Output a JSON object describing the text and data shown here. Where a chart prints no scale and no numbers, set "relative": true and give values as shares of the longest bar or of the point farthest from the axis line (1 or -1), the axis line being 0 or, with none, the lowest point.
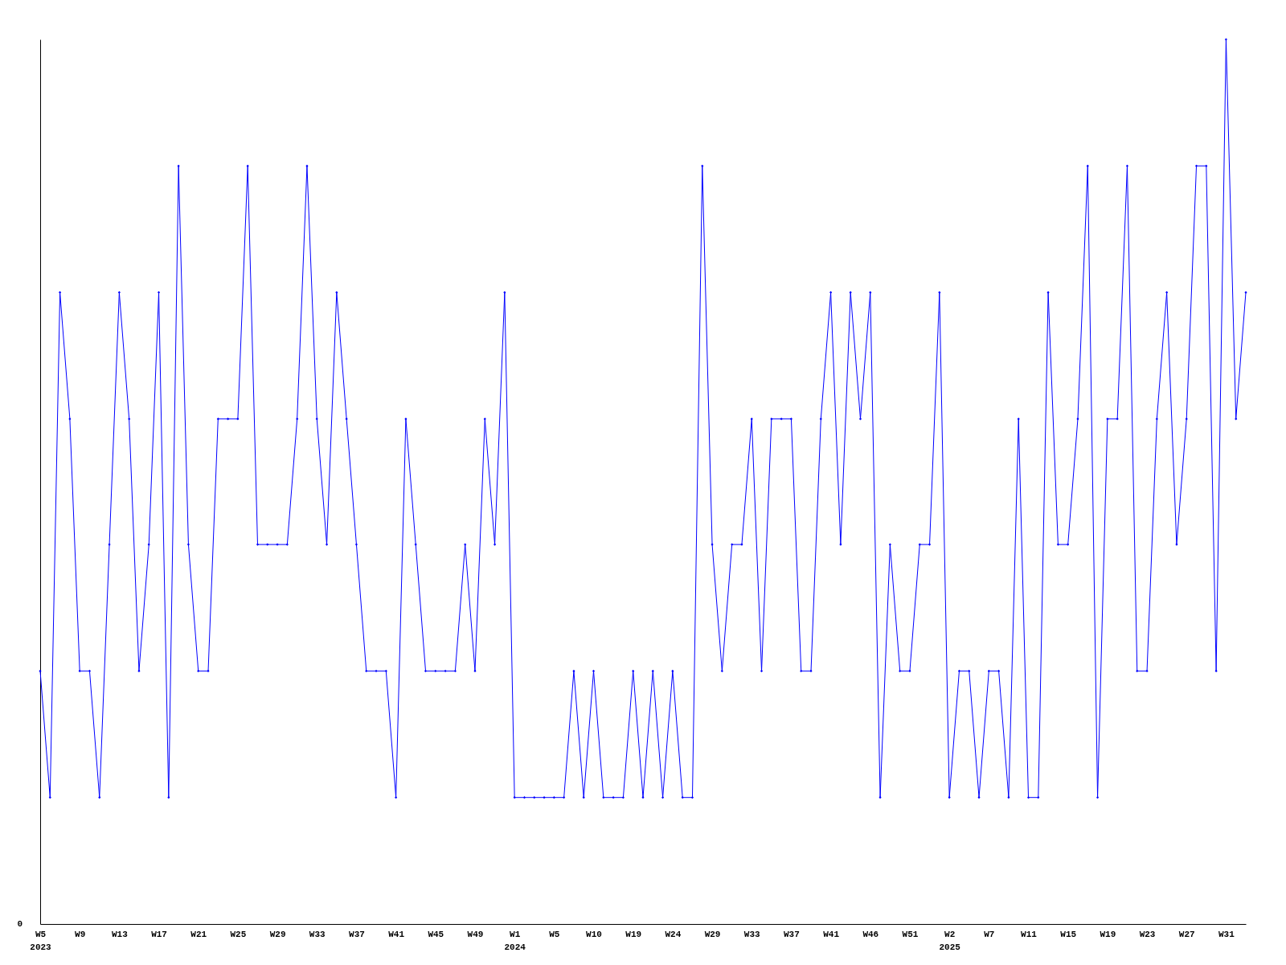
{
  "chart_data": {
    "type": "line",
    "relative": true,
    "marker": "diamond",
    "line_style": "solid",
    "grid": false,
    "annotations": [
      "0"
    ],
    "categories": [
      "W5\n2023",
      null,
      null,
      null,
      "W9",
      null,
      null,
      null,
      "W13",
      null,
      null,
      null,
      "W17",
      null,
      null,
      null,
      "W21",
      null,
      null,
      null,
      "W25",
      null,
      null,
      null,
      "W29",
      null,
      null,
      null,
      "W33",
      null,
      null,
      null,
      "W37",
      null,
      null,
      null,
      "W41",
      null,
      null,
      null,
      "W45",
      null,
      null,
      null,
      "W49",
      null,
      null,
      null,
      "W1\n2024",
      null,
      null,
      null,
      "W5",
      null,
      null,
      null,
      "W10",
      null,
      null,
      null,
      "W19",
      null,
      null,
      null,
      "W24",
      null,
      null,
      null,
      "W29",
      null,
      null,
      null,
      "W33",
      null,
      null,
      null,
      "W37",
      null,
      null,
      null,
      "W41",
      null,
      null,
      null,
      "W46",
      null,
      null,
      null,
      "W51",
      null,
      null,
      null,
      "W2\n2025",
      null,
      null,
      null,
      "W7",
      null,
      null,
      null,
      "W11",
      null,
      null,
      null,
      "W15",
      null,
      null,
      null,
      "W19",
      null,
      null,
      null,
      "W23",
      null,
      null,
      null,
      "W27",
      null,
      null,
      null,
      "W31",
      null,
      null
    ],
    "series": [
      {
        "color": "#0000ff",
        "values": [
          0.286,
          0.143,
          0.714,
          0.571,
          0.286,
          0.286,
          0.143,
          0.429,
          0.714,
          0.571,
          0.286,
          0.429,
          0.714,
          0.143,
          0.857,
          0.429,
          0.286,
          0.286,
          0.571,
          0.571,
          0.571,
          0.857,
          0.429,
          0.429,
          0.429,
          0.429,
          0.571,
          0.857,
          0.571,
          0.429,
          0.714,
          0.571,
          0.429,
          0.286,
          0.286,
          0.286,
          0.143,
          0.571,
          0.429,
          0.286,
          0.286,
          0.286,
          0.286,
          0.429,
          0.286,
          0.571,
          0.429,
          0.714,
          0.143,
          0.143,
          0.143,
          0.143,
          0.143,
          0.143,
          0.286,
          0.143,
          0.286,
          0.143,
          0.143,
          0.143,
          0.286,
          0.143,
          0.286,
          0.143,
          0.286,
          0.143,
          0.143,
          0.857,
          0.429,
          0.286,
          0.429,
          0.429,
          0.571,
          0.286,
          0.571,
          0.571,
          0.571,
          0.286,
          0.286,
          0.571,
          0.714,
          0.429,
          0.714,
          0.571,
          0.714,
          0.143,
          0.429,
          0.286,
          0.286,
          0.429,
          0.429,
          0.714,
          0.143,
          0.286,
          0.286,
          0.143,
          0.286,
          0.286,
          0.143,
          0.571,
          0.143,
          0.143,
          0.714,
          0.429,
          0.429,
          0.571,
          0.857,
          0.143,
          0.571,
          0.571,
          0.857,
          0.286,
          0.286,
          0.571,
          0.714,
          0.429,
          0.571,
          0.857,
          0.857,
          0.286,
          1,
          0.571,
          0.714
        ]
      }
    ]
  }
}
